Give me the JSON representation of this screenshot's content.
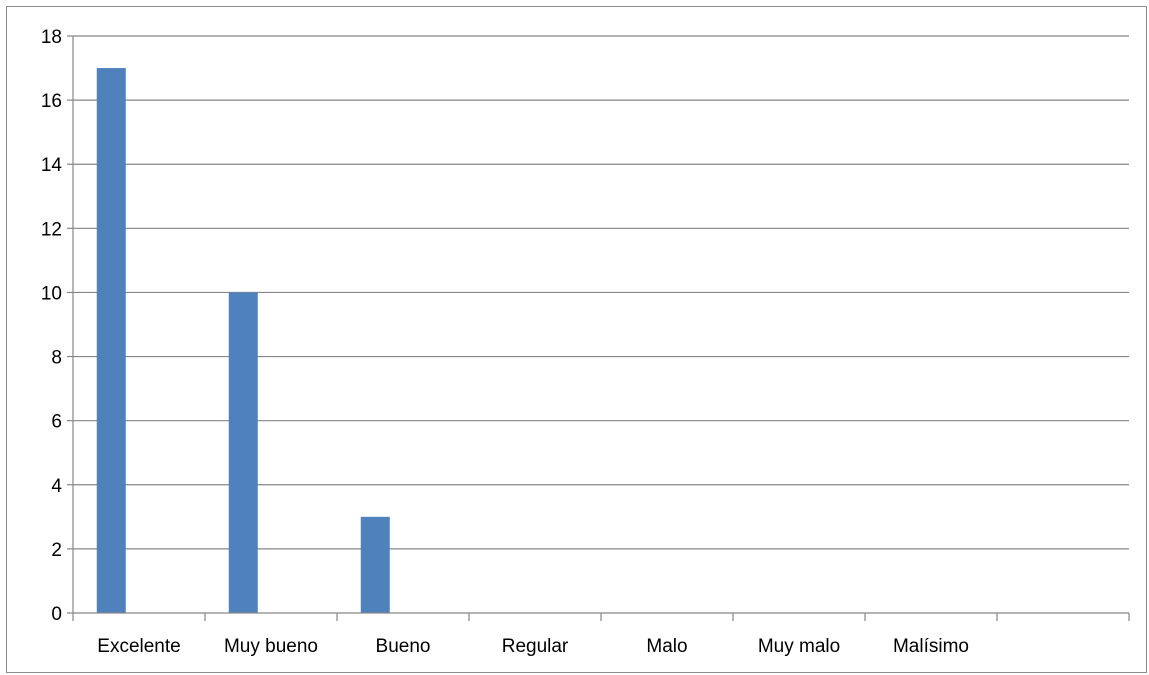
{
  "chart_data": {
    "type": "bar",
    "title": "",
    "xlabel": "",
    "ylabel": "",
    "categories": [
      "Excelente",
      "Muy bueno",
      "Bueno",
      "Regular",
      "Malo",
      "Muy malo",
      "Malísimo",
      ""
    ],
    "values": [
      17,
      10,
      3,
      0,
      0,
      0,
      0,
      0
    ],
    "ylim": [
      0,
      18
    ],
    "yticks": [
      0,
      2,
      4,
      6,
      8,
      10,
      12,
      14,
      16,
      18
    ],
    "grid": true,
    "legend": "none",
    "bar_color": "#4f81bd",
    "grid_color": "#868686"
  }
}
